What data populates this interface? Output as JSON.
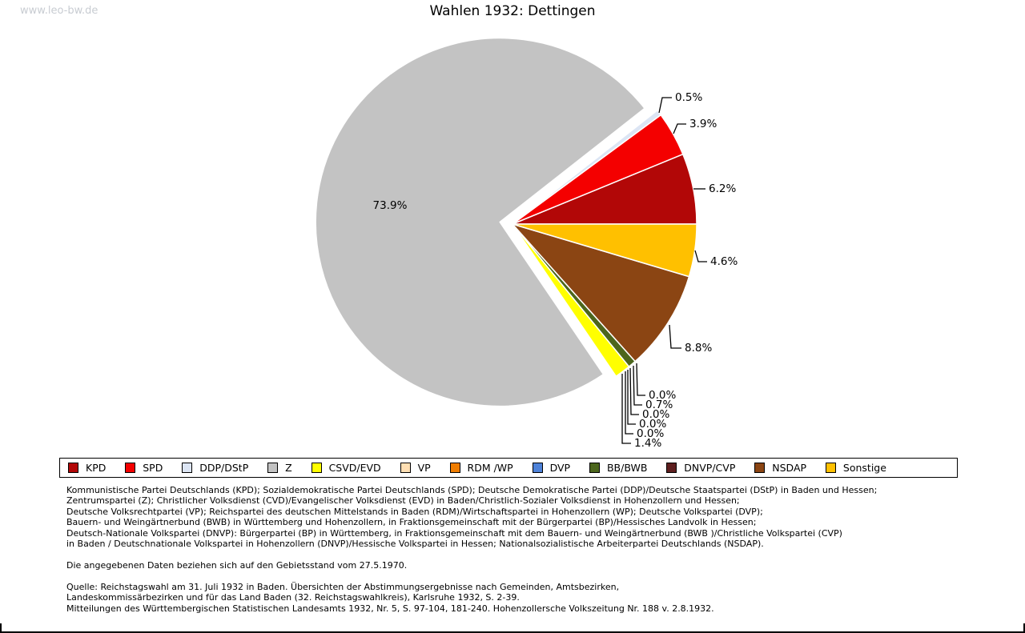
{
  "watermark": "www.leo-bw.de",
  "title": "Wahlen 1932: Dettingen",
  "chart_data": {
    "type": "pie",
    "title": "Wahlen 1932: Dettingen",
    "unit": "%",
    "direction": "counterclockwise",
    "start_angle_deg": 0,
    "exploded_slice": "Z",
    "series": [
      {
        "key": "KPD",
        "label": "KPD",
        "value": 6.2,
        "color": "#B20707"
      },
      {
        "key": "SPD",
        "label": "SPD",
        "value": 3.9,
        "color": "#F40000"
      },
      {
        "key": "DDP",
        "label": "DDP/DStP",
        "value": 0.5,
        "color": "#DCE5F4"
      },
      {
        "key": "Z",
        "label": "Z",
        "value": 73.9,
        "color": "#C3C3C3"
      },
      {
        "key": "CSVD",
        "label": "CSVD/EVD",
        "value": 1.4,
        "color": "#FFFF00"
      },
      {
        "key": "VP",
        "label": "VP",
        "value": 0.0,
        "color": "#FFDFB3"
      },
      {
        "key": "RDM",
        "label": "RDM /WP",
        "value": 0.0,
        "color": "#F07D00"
      },
      {
        "key": "DVP",
        "label": "DVP",
        "value": 0.0,
        "color": "#4E82D8"
      },
      {
        "key": "BB",
        "label": "BB/BWB",
        "value": 0.7,
        "color": "#4C661C"
      },
      {
        "key": "DNVP",
        "label": "DNVP/CVP",
        "value": 0.0,
        "color": "#5E1F1F"
      },
      {
        "key": "NSDAP",
        "label": "NSDAP",
        "value": 8.8,
        "color": "#8B4513"
      },
      {
        "key": "Sonstige",
        "label": "Sonstige",
        "value": 4.6,
        "color": "#FFC000"
      }
    ]
  },
  "footnotes": [
    "Kommunistische Partei Deutschlands (KPD); Sozialdemokratische Partei Deutschlands (SPD); Deutsche Demokratische Partei (DDP)/Deutsche Staatspartei (DStP) in Baden und Hessen;",
    "Zentrumspartei (Z); Christlicher Volksdienst (CVD)/Evangelischer Volksdienst (EVD) in Baden/Christlich-Sozialer Volksdienst in Hohenzollern und Hessen;",
    "Deutsche Volksrechtpartei (VP); Reichspartei des deutschen Mittelstands in Baden (RDM)/Wirtschaftspartei in Hohenzollern (WP); Deutsche Volkspartei (DVP);",
    "Bauern- und Weingärtnerbund (BWB) in Württemberg und Hohenzollern, in Fraktionsgemeinschaft mit der Bürgerpartei (BP)/Hessisches Landvolk in Hessen;",
    "Deutsch-Nationale Volkspartei (DNVP): Bürgerpartei (BP) in Württemberg, in Fraktionsgemeinschaft mit dem Bauern- und Weingärtnerbund (BWB )/Christliche Volkspartei (CVP)",
    "in Baden / Deutschnationale Volkspartei in Hohenzollern (DNVP)/Hessische Volkspartei in Hessen; Nationalsozialistische Arbeiterpartei Deutschlands (NSDAP)."
  ],
  "note": "Die angegebenen Daten beziehen sich auf den Gebietsstand vom 27.5.1970.",
  "source": [
    "Quelle: Reichstagswahl am 31. Juli 1932 in Baden. Übersichten der Abstimmungsergebnisse nach Gemeinden, Amtsbezirken,",
    "Landeskommissärbezirken und für das Land Baden (32. Reichstagswahlkreis), Karlsruhe 1932, S. 2-39.",
    "Mitteilungen des Württembergischen Statistischen Landesamts 1932, Nr. 5, S. 97-104, 181-240. Hohenzollersche Volkszeitung Nr. 188 v. 2.8.1932."
  ]
}
